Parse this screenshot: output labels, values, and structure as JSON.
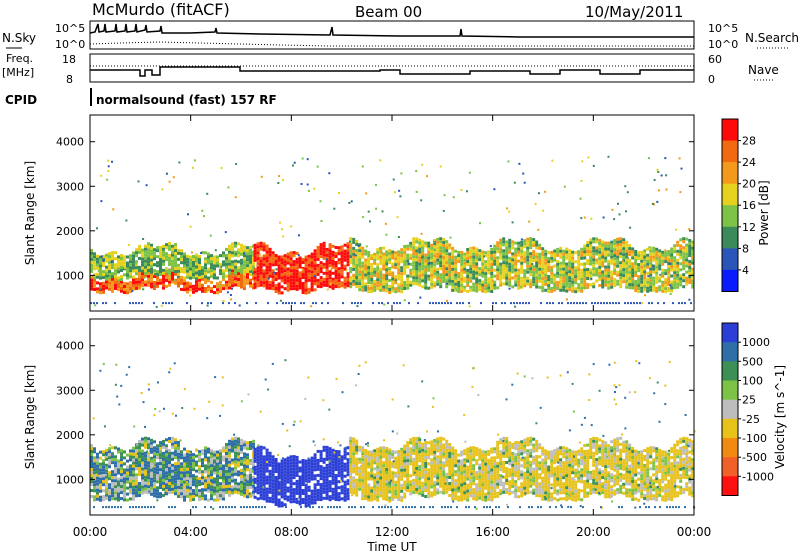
{
  "header": {
    "station": "McMurdo (fitACF)",
    "beam": "Beam 00",
    "date": "10/May/2011"
  },
  "panels": {
    "nsky_label": "N.Sky",
    "nsearch_label": "N.Search",
    "freq_label_1": "Freq.",
    "freq_label_2": "[MHz]",
    "nave_label": "Nave",
    "cpid_label": "CPID",
    "cpid_text": "normalsound (fast) 157 RF",
    "nsky_ticks": [
      "10^5",
      "10^0"
    ],
    "nsearch_ticks": [
      "10^5",
      "10^0"
    ],
    "freq_ticks": [
      "18",
      "8"
    ],
    "nave_ticks": [
      "60",
      "0"
    ]
  },
  "x_axis": {
    "label": "Time UT",
    "ticks": [
      "00:00",
      "04:00",
      "08:00",
      "12:00",
      "16:00",
      "20:00",
      "00:00"
    ]
  },
  "colors": {
    "power_scale": [
      "#0a1bff",
      "#2b55b8",
      "#3b8a5a",
      "#7cc247",
      "#e6d21e",
      "#f39a1c",
      "#f26a10",
      "#ff0a0a"
    ],
    "velocity_scale": [
      "#2b3fd6",
      "#2e6fa8",
      "#3c8f55",
      "#7cc247",
      "#bdbdbd",
      "#e6c21b",
      "#f08a10",
      "#f2602a",
      "#ff1010"
    ]
  },
  "chart_data": [
    {
      "type": "heatmap",
      "name": "power",
      "ylabel": "Slant Range [km]",
      "yticks": [
        "1000",
        "2000",
        "3000",
        "4000"
      ],
      "ylim": [
        200,
        4600
      ],
      "xlim_hours": [
        0,
        24
      ],
      "colorbar_label": "Power [dB]",
      "colorbar_ticks": [
        "4",
        "8",
        "12",
        "16",
        "20",
        "24",
        "28"
      ],
      "features": [
        {
          "t0": 0.0,
          "t1": 6.5,
          "r0": 700,
          "r1": 1000,
          "value": 26
        },
        {
          "t0": 0.0,
          "t1": 6.5,
          "r0": 1000,
          "r1": 1600,
          "value": 14
        },
        {
          "t0": 6.5,
          "t1": 10.3,
          "r0": 700,
          "r1": 1600,
          "value": 30
        },
        {
          "t0": 10.3,
          "t1": 24.0,
          "r0": 700,
          "r1": 1700,
          "value": 16
        }
      ]
    },
    {
      "type": "heatmap",
      "name": "velocity",
      "ylabel": "Slant Range [km]",
      "yticks": [
        "1000",
        "2000",
        "3000",
        "4000"
      ],
      "ylim": [
        200,
        4600
      ],
      "xlim_hours": [
        0,
        24
      ],
      "colorbar_label": "Velocity [m s^-1]",
      "colorbar_ticks": [
        "1000",
        "500",
        "100",
        "25",
        "-25",
        "-100",
        "-500",
        "-1000"
      ],
      "features": [
        {
          "t0": 0.0,
          "t1": 6.5,
          "r0": 600,
          "r1": 1800,
          "value": 50
        },
        {
          "t0": 6.5,
          "t1": 10.3,
          "r0": 500,
          "r1": 1600,
          "value": 800
        },
        {
          "t0": 10.3,
          "t1": 24.0,
          "r0": 600,
          "r1": 1800,
          "value": -150
        }
      ]
    }
  ]
}
